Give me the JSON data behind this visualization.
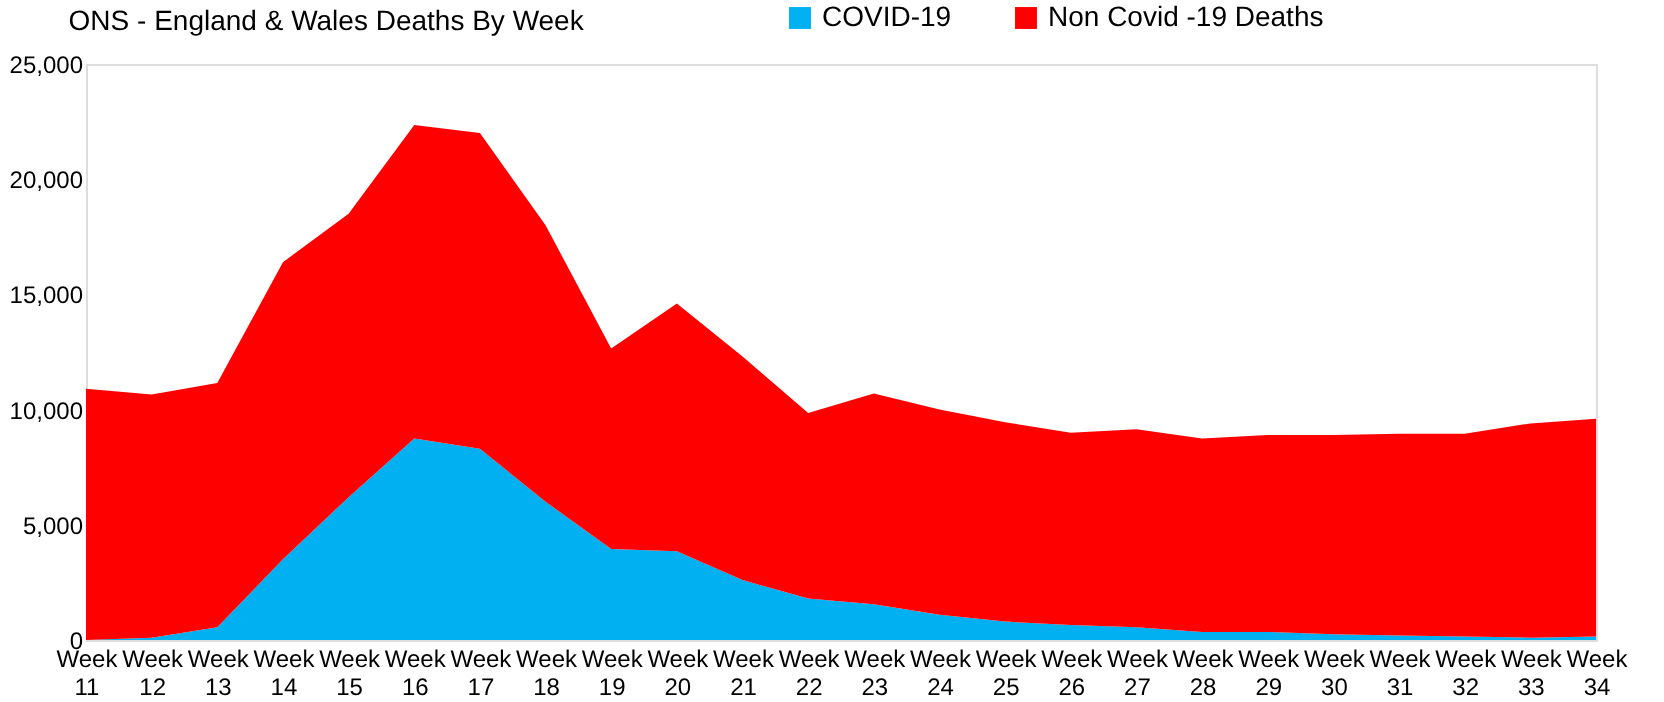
{
  "chart_data": {
    "type": "area",
    "title": "ONS - England & Wales Deaths By Week",
    "stacked": true,
    "legend": "top right",
    "grid": false,
    "categories": [
      "Week 11",
      "Week 12",
      "Week 13",
      "Week 14",
      "Week 15",
      "Week 16",
      "Week 17",
      "Week 18",
      "Week 19",
      "Week 20",
      "Week 21",
      "Week 22",
      "Week 23",
      "Week 24",
      "Week 25",
      "Week 26",
      "Week 27",
      "Week 28",
      "Week 29",
      "Week 30",
      "Week 31",
      "Week 32",
      "Week 33",
      "Week 34"
    ],
    "ylim": [
      0,
      25000
    ],
    "yticks": [
      {
        "value": 0,
        "label": "0"
      },
      {
        "value": 5000,
        "label": "5,000"
      },
      {
        "value": 10000,
        "label": "10,000"
      },
      {
        "value": 15000,
        "label": "15,000"
      },
      {
        "value": 20000,
        "label": "20,000"
      },
      {
        "value": 25000,
        "label": "25,000"
      }
    ],
    "series": [
      {
        "name": "COVID-19",
        "color": "#00b0f0",
        "values": [
          0,
          100,
          550,
          3500,
          6200,
          8750,
          8300,
          6000,
          3950,
          3850,
          2600,
          1800,
          1550,
          1100,
          800,
          650,
          550,
          350,
          350,
          250,
          200,
          150,
          100,
          150
        ]
      },
      {
        "name": "Non Covid -19 Deaths",
        "color": "#ff0000",
        "values": [
          10900,
          10550,
          10600,
          12900,
          12300,
          13600,
          13700,
          12000,
          8700,
          10750,
          9700,
          8050,
          9150,
          8900,
          8650,
          8350,
          8600,
          8400,
          8550,
          8650,
          8750,
          8800,
          9300,
          9450
        ]
      }
    ]
  }
}
